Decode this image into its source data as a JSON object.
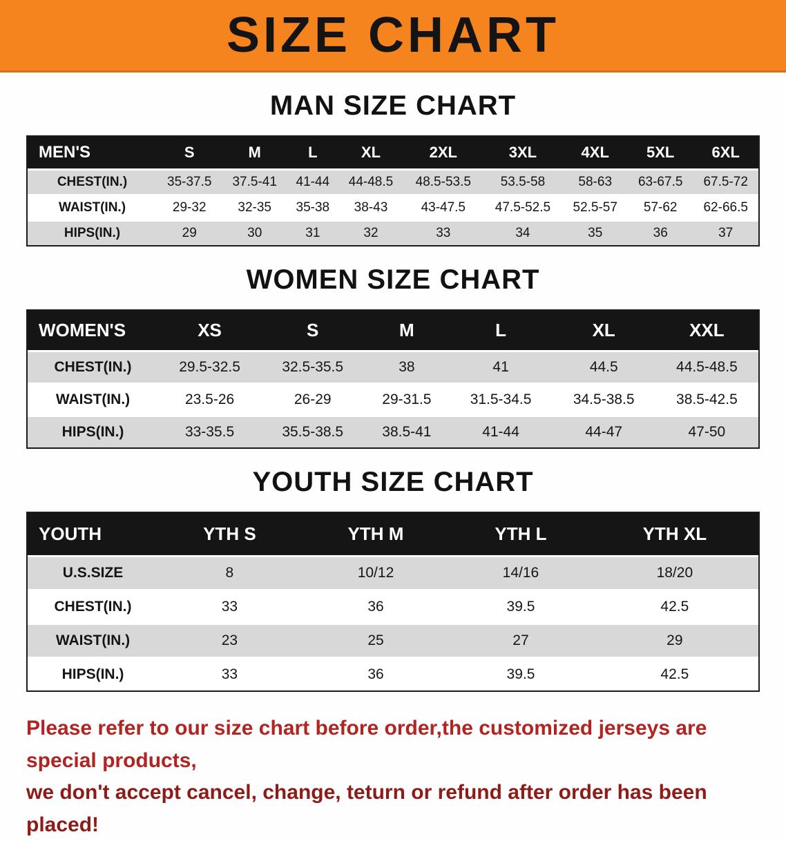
{
  "colors": {
    "banner_bg": "#f5831e",
    "banner_edge": "#d96f12",
    "table_header_bg": "#151515",
    "stripe": "#d8d8d8",
    "footer_color1": "#b02421",
    "footer_color2": "#8d1b18"
  },
  "banner": {
    "title": "SIZE CHART"
  },
  "sections": [
    {
      "heading": "MAN SIZE CHART",
      "table": {
        "header": [
          "MEN'S",
          "S",
          "M",
          "L",
          "XL",
          "2XL",
          "3XL",
          "4XL",
          "5XL",
          "6XL"
        ],
        "rows": [
          [
            "CHEST(IN.)",
            "35-37.5",
            "37.5-41",
            "41-44",
            "44-48.5",
            "48.5-53.5",
            "53.5-58",
            "58-63",
            "63-67.5",
            "67.5-72"
          ],
          [
            "WAIST(IN.)",
            "29-32",
            "32-35",
            "35-38",
            "38-43",
            "43-47.5",
            "47.5-52.5",
            "52.5-57",
            "57-62",
            "62-66.5"
          ],
          [
            "HIPS(IN.)",
            "29",
            "30",
            "31",
            "32",
            "33",
            "34",
            "35",
            "36",
            "37"
          ]
        ]
      }
    },
    {
      "heading": "WOMEN SIZE CHART",
      "table": {
        "header": [
          "WOMEN'S",
          "XS",
          "S",
          "M",
          "L",
          "XL",
          "XXL"
        ],
        "rows": [
          [
            "CHEST(IN.)",
            "29.5-32.5",
            "32.5-35.5",
            "38",
            "41",
            "44.5",
            "44.5-48.5"
          ],
          [
            "WAIST(IN.)",
            "23.5-26",
            "26-29",
            "29-31.5",
            "31.5-34.5",
            "34.5-38.5",
            "38.5-42.5"
          ],
          [
            "HIPS(IN.)",
            "33-35.5",
            "35.5-38.5",
            "38.5-41",
            "41-44",
            "44-47",
            "47-50"
          ]
        ]
      }
    },
    {
      "heading": "YOUTH SIZE CHART",
      "table": {
        "header": [
          "YOUTH",
          "YTH S",
          "YTH M",
          "YTH L",
          "YTH XL"
        ],
        "rows": [
          [
            "U.S.SIZE",
            "8",
            "10/12",
            "14/16",
            "18/20"
          ],
          [
            "CHEST(IN.)",
            "33",
            "36",
            "39.5",
            "42.5"
          ],
          [
            "WAIST(IN.)",
            "23",
            "25",
            "27",
            "29"
          ],
          [
            "HIPS(IN.)",
            "33",
            "36",
            "39.5",
            "42.5"
          ]
        ]
      }
    }
  ],
  "footer": {
    "line1": "Please refer to our size chart before order,the customized jerseys are special products,",
    "line2": "we don't accept cancel, change, teturn or refund after order has been placed!"
  }
}
